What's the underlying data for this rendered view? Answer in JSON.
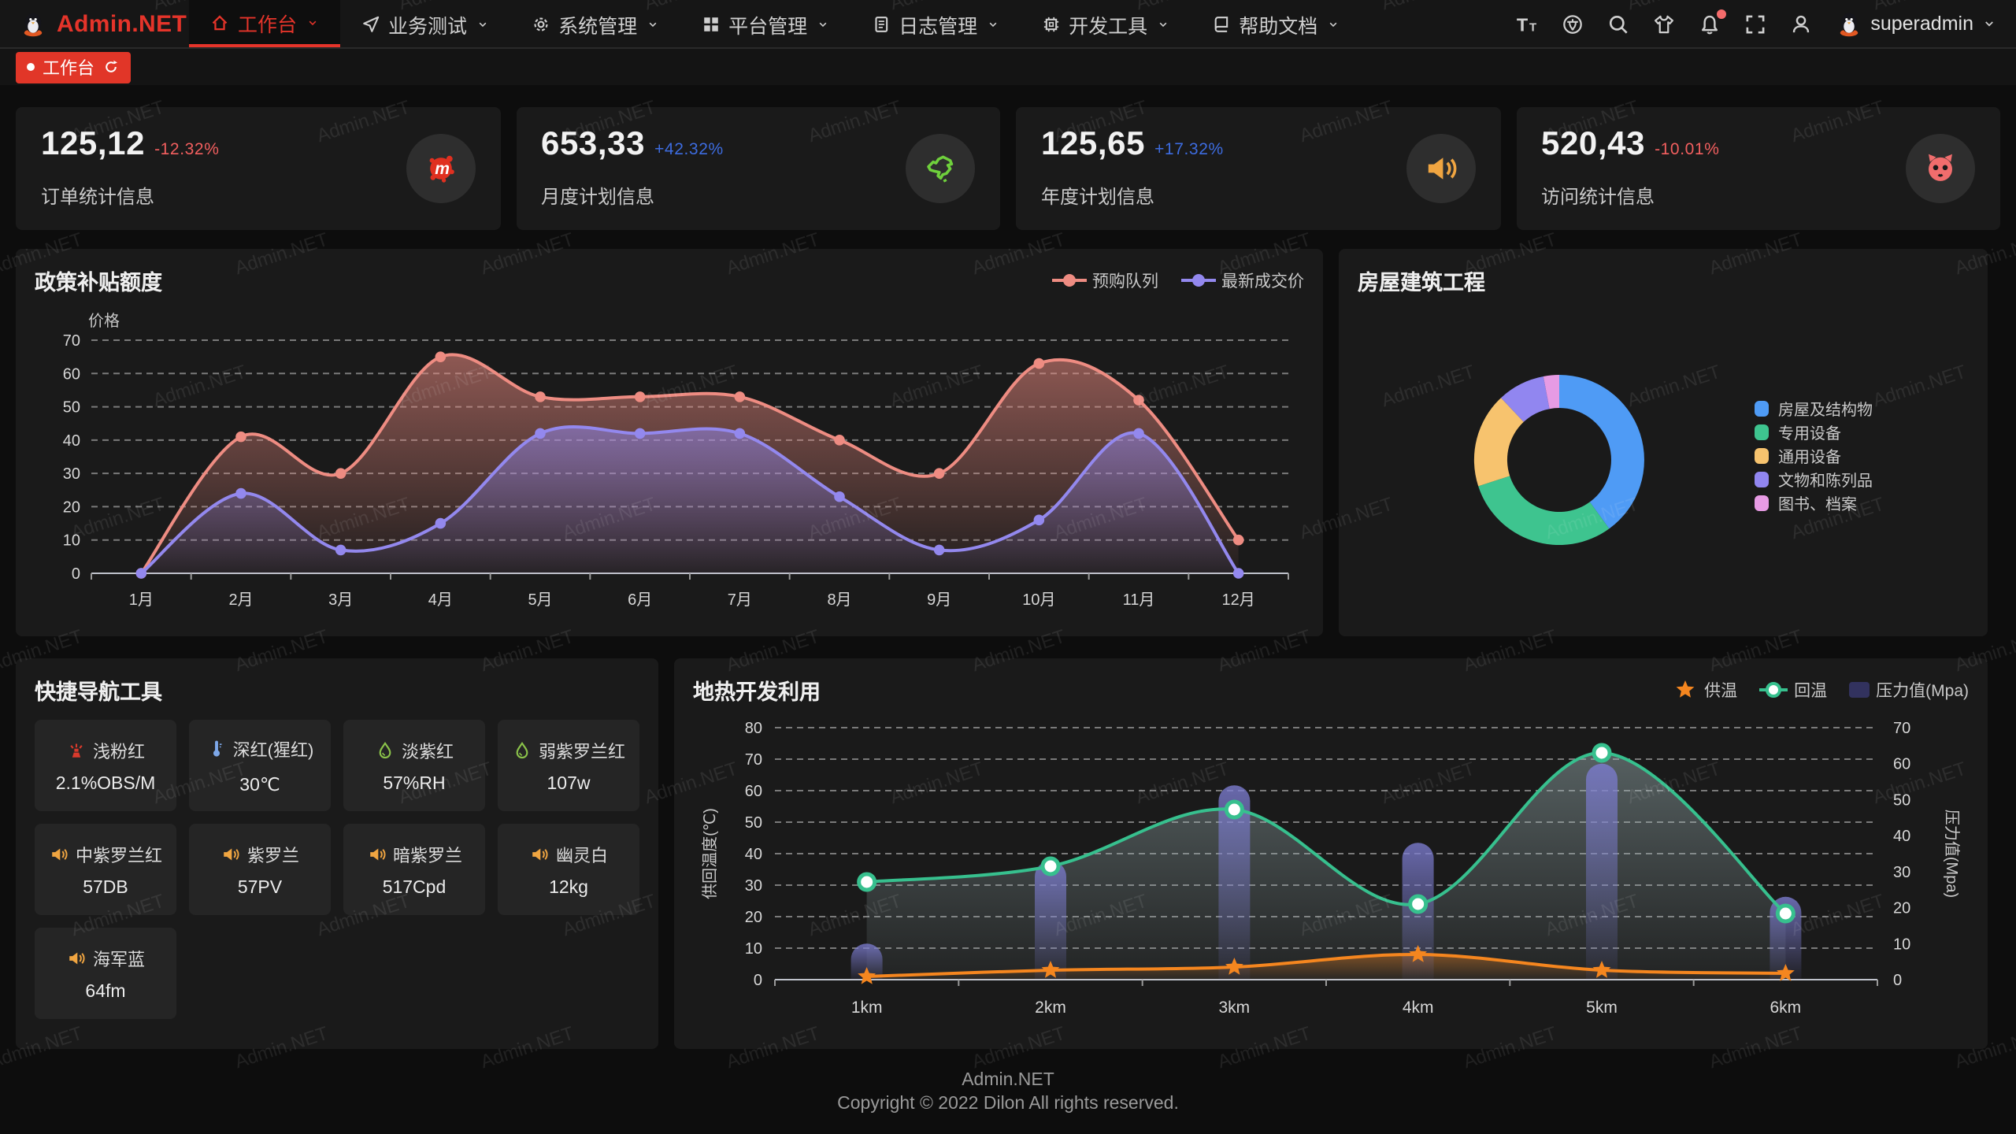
{
  "watermark": "Admin.NET",
  "header": {
    "logo_text": "Admin.NET",
    "menu": [
      {
        "label": "工作台",
        "icon": "home-icon",
        "active": true
      },
      {
        "label": "业务测试",
        "icon": "send-icon",
        "active": false
      },
      {
        "label": "系统管理",
        "icon": "gear-icon",
        "active": false
      },
      {
        "label": "平台管理",
        "icon": "grid-icon",
        "active": false
      },
      {
        "label": "日志管理",
        "icon": "doc-icon",
        "active": false
      },
      {
        "label": "开发工具",
        "icon": "chip-icon",
        "active": false
      },
      {
        "label": "帮助文档",
        "icon": "book-icon",
        "active": false
      }
    ],
    "action_icons": [
      "font-size-icon",
      "language-icon",
      "search-icon",
      "theme-icon",
      "bell-icon",
      "fullscreen-icon",
      "person-icon"
    ],
    "user": "superadmin"
  },
  "tabbar": {
    "active_tab": "工作台"
  },
  "stats": [
    {
      "value": "125,12",
      "delta": "-12.32%",
      "trend": "down",
      "label": "订单统计信息",
      "icon": "splat-icon",
      "icon_color": "#e03020"
    },
    {
      "value": "653,33",
      "delta": "+42.32%",
      "trend": "up",
      "label": "月度计划信息",
      "icon": "map-icon",
      "icon_color": "#6fd03c"
    },
    {
      "value": "125,65",
      "delta": "+17.32%",
      "trend": "up",
      "label": "年度计划信息",
      "icon": "speaker-icon",
      "icon_color": "#f0a541"
    },
    {
      "value": "520,43",
      "delta": "-10.01%",
      "trend": "down",
      "label": "访问统计信息",
      "icon": "cat-icon",
      "icon_color": "#f16d6d"
    }
  ],
  "chart_data": [
    {
      "type": "line",
      "title": "政策补贴额度",
      "ylabel": "价格",
      "ylim": [
        0,
        70
      ],
      "grid": true,
      "legend_position": "top-right",
      "categories": [
        "1月",
        "2月",
        "3月",
        "4月",
        "5月",
        "6月",
        "7月",
        "8月",
        "9月",
        "10月",
        "11月",
        "12月"
      ],
      "series": [
        {
          "name": "预购队列",
          "color": "#ee8c82",
          "values": [
            0,
            41,
            30,
            65,
            53,
            53,
            53,
            40,
            30,
            63,
            52,
            10
          ]
        },
        {
          "name": "最新成交价",
          "color": "#9388ee",
          "values": [
            0,
            24,
            7,
            15,
            42,
            42,
            42,
            23,
            7,
            16,
            42,
            0
          ]
        }
      ]
    },
    {
      "type": "pie",
      "title": "房屋建筑工程",
      "legend_position": "right",
      "slices": [
        {
          "label": "房屋及结构物",
          "value": 40,
          "color": "#4f9bf5"
        },
        {
          "label": "专用设备",
          "value": 30,
          "color": "#3ec48f"
        },
        {
          "label": "通用设备",
          "value": 18,
          "color": "#f7c36e"
        },
        {
          "label": "文物和陈列品",
          "value": 9,
          "color": "#9186f0"
        },
        {
          "label": "图书、档案",
          "value": 3,
          "color": "#e79be4"
        }
      ]
    },
    {
      "type": "mixed-line-bar",
      "title": "地热开发利用",
      "categories": [
        "1km",
        "2km",
        "3km",
        "4km",
        "5km",
        "6km"
      ],
      "ylabel_left": "供回温度(℃)",
      "ylabel_right": "压力值(Mpa)",
      "ylim_left": [
        0,
        80
      ],
      "ylim_right": [
        0,
        70
      ],
      "legend_position": "top-right",
      "series": [
        {
          "name": "供温",
          "type": "line",
          "axis": "left",
          "marker": "star",
          "color": "#f5861f",
          "values": [
            1,
            3,
            4,
            8,
            3,
            2
          ]
        },
        {
          "name": "回温",
          "type": "line",
          "axis": "left",
          "marker": "circle",
          "area": true,
          "color": "#37c08e",
          "values": [
            31,
            36,
            54,
            24,
            72,
            21
          ]
        },
        {
          "name": "压力值(Mpa)",
          "type": "bar",
          "axis": "right",
          "color": "#55558f",
          "values": [
            10,
            33,
            54,
            38,
            60,
            23
          ]
        }
      ]
    }
  ],
  "quick_nav": {
    "title": "快捷导航工具",
    "items": [
      {
        "icon": "fountain-icon",
        "icon_color": "#d93a2c",
        "name": "浅粉红",
        "value": "2.1%OBS/M"
      },
      {
        "icon": "thermometer-icon",
        "icon_color": "#7da7e8",
        "name": "深红(猩红)",
        "value": "30℃"
      },
      {
        "icon": "drop-icon",
        "icon_color": "#8bc34a",
        "name": "淡紫红",
        "value": "57%RH"
      },
      {
        "icon": "drop-icon",
        "icon_color": "#8bc34a",
        "name": "弱紫罗兰红",
        "value": "107w"
      },
      {
        "icon": "speaker-icon",
        "icon_color": "#f0a541",
        "name": "中紫罗兰红",
        "value": "57DB"
      },
      {
        "icon": "speaker-icon",
        "icon_color": "#f0a541",
        "name": "紫罗兰",
        "value": "57PV"
      },
      {
        "icon": "speaker-icon",
        "icon_color": "#f0a541",
        "name": "暗紫罗兰",
        "value": "517Cpd"
      },
      {
        "icon": "speaker-icon",
        "icon_color": "#f0a541",
        "name": "幽灵白",
        "value": "12kg"
      },
      {
        "icon": "speaker-icon",
        "icon_color": "#f0a541",
        "name": "海军蓝",
        "value": "64fm"
      }
    ]
  },
  "footer": {
    "line1": "Admin.NET",
    "line2": "Copyright © 2022 Dilon All rights reserved."
  }
}
